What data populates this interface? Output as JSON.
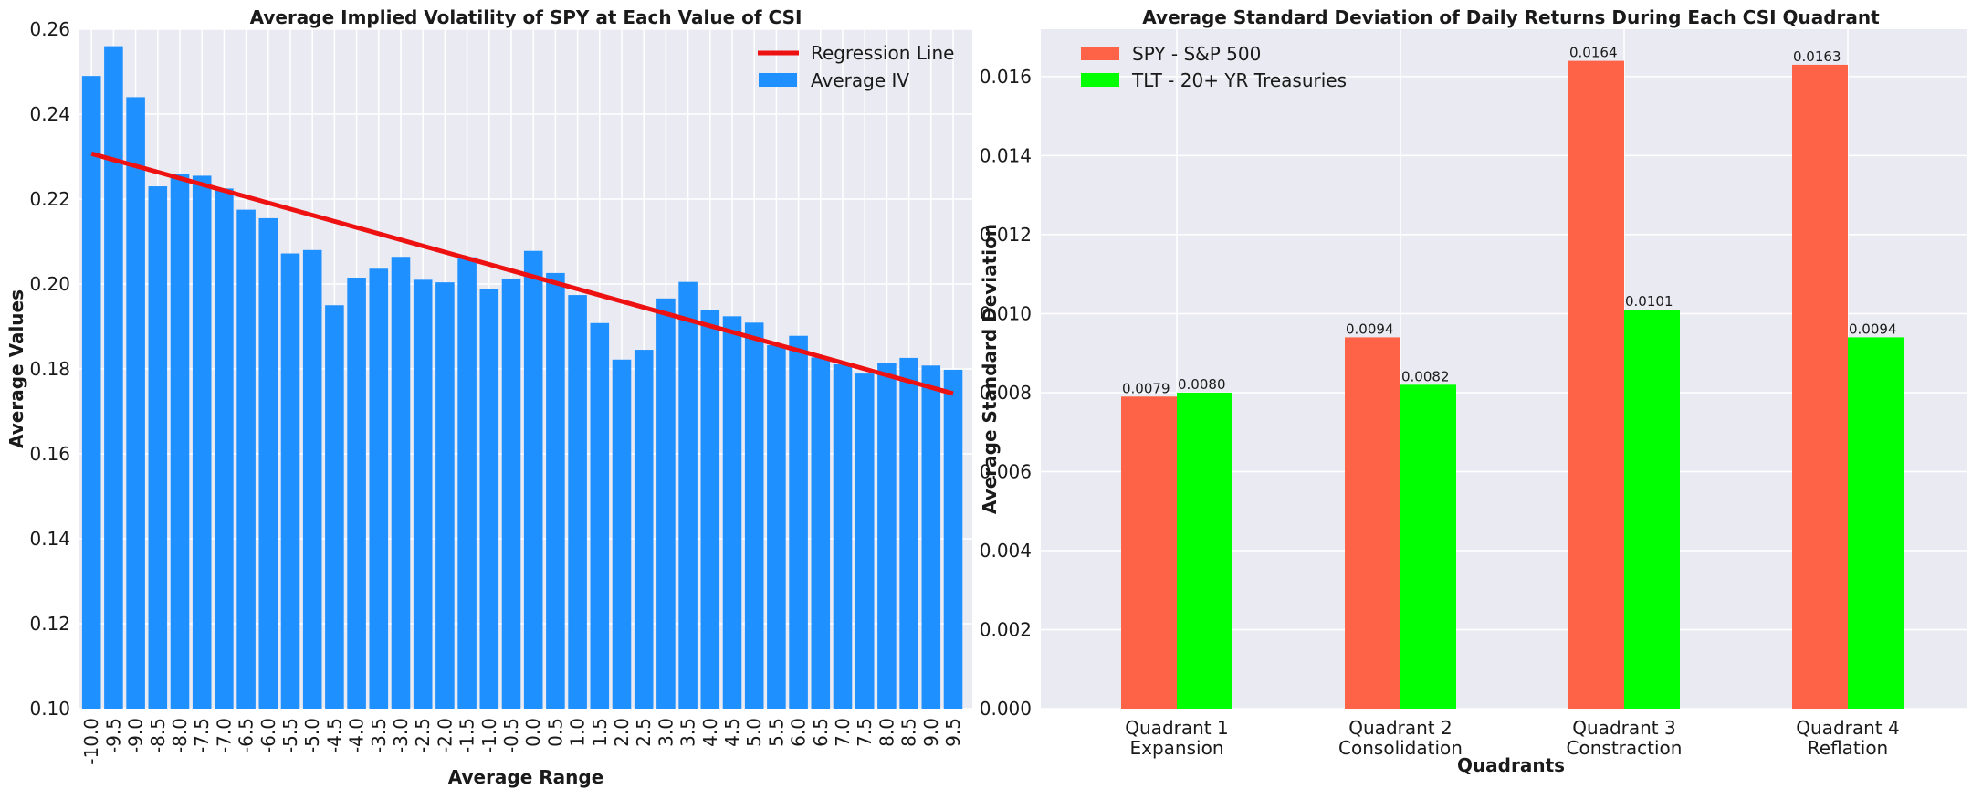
{
  "chart_data": [
    {
      "type": "bar",
      "title": "Average Implied Volatility of SPY at Each Value of CSI",
      "xlabel": "Average Range",
      "ylabel": "Average Values",
      "ylim": [
        0.1,
        0.26
      ],
      "yticks": [
        "0.10",
        "0.12",
        "0.14",
        "0.16",
        "0.18",
        "0.20",
        "0.22",
        "0.24",
        "0.26"
      ],
      "categories": [
        "-10.0",
        "-9.5",
        "-9.0",
        "-8.5",
        "-8.0",
        "-7.5",
        "-7.0",
        "-6.5",
        "-6.0",
        "-5.5",
        "-5.0",
        "-4.5",
        "-4.0",
        "-3.5",
        "-3.0",
        "-2.5",
        "-2.0",
        "-1.5",
        "-1.0",
        "-0.5",
        "0.0",
        "0.5",
        "1.0",
        "1.5",
        "2.0",
        "2.5",
        "3.0",
        "3.5",
        "4.0",
        "4.5",
        "5.0",
        "5.5",
        "6.0",
        "6.5",
        "7.0",
        "7.5",
        "8.0",
        "8.5",
        "9.0",
        "9.5"
      ],
      "series": [
        {
          "name": "Average IV",
          "color": "#1E90FF",
          "values": [
            0.249,
            0.256,
            0.244,
            0.223,
            0.226,
            0.2255,
            0.2225,
            0.2175,
            0.2155,
            0.2072,
            0.208,
            0.195,
            0.2015,
            0.2036,
            0.2064,
            0.201,
            0.2004,
            0.2063,
            0.1988,
            0.2013,
            0.2078,
            0.2026,
            0.1974,
            0.1908,
            0.1822,
            0.1845,
            0.1966,
            0.2005,
            0.1938,
            0.1924,
            0.1909,
            0.1856,
            0.1878,
            0.1827,
            0.1811,
            0.1789,
            0.1815,
            0.1826,
            0.1808,
            0.1798
          ]
        }
      ],
      "regression": {
        "name": "Regression Line",
        "color": "#EE1111",
        "start": 0.2307,
        "end": 0.1742
      },
      "legend": {
        "placement": "top-right",
        "entries": [
          "Regression Line",
          "Average IV"
        ]
      },
      "grid": true
    },
    {
      "type": "bar",
      "title": "Average Standard Deviation of Daily Returns During Each CSI Quadrant",
      "xlabel": "Quadrants",
      "ylabel": "Average Standard Deviation",
      "ylim": [
        0,
        0.0172
      ],
      "yticks": [
        "0.000",
        "0.002",
        "0.004",
        "0.006",
        "0.008",
        "0.010",
        "0.012",
        "0.014",
        "0.016"
      ],
      "categories": [
        [
          "Quadrant 1",
          "Expansion"
        ],
        [
          "Quadrant 2",
          "Consolidation"
        ],
        [
          "Quadrant 3",
          "Constraction"
        ],
        [
          "Quadrant 4",
          "Reflation"
        ]
      ],
      "series": [
        {
          "name": "SPY - S&P 500",
          "color": "#FF6347",
          "values": [
            0.0079,
            0.0094,
            0.0164,
            0.0163
          ],
          "labels": [
            "0.0079",
            "0.0094",
            "0.0164",
            "0.0163"
          ]
        },
        {
          "name": "TLT - 20+ YR Treasuries",
          "color": "#00FF00",
          "values": [
            0.008,
            0.0082,
            0.0101,
            0.0094
          ],
          "labels": [
            "0.0080",
            "0.0082",
            "0.0101",
            "0.0094"
          ]
        }
      ],
      "legend": {
        "placement": "top-left",
        "entries": [
          "SPY - S&P 500",
          "TLT - 20+ YR Treasuries"
        ]
      },
      "grid": true
    }
  ]
}
